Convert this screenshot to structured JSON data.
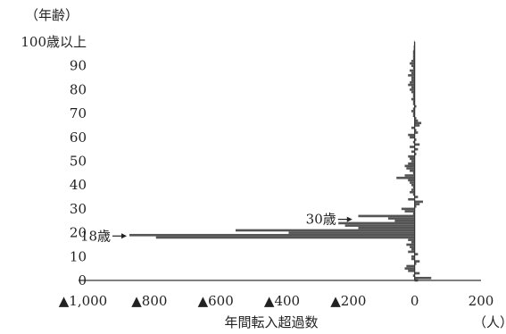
{
  "chart_data": {
    "type": "bar",
    "orientation": "horizontal",
    "title": "",
    "xlabel": "年間転入超過数",
    "xunit": "（人）",
    "ylabel": "（年齢）",
    "x_ticks": [
      "▲1,000",
      "▲800",
      "▲600",
      "▲400",
      "▲200",
      "0",
      "200"
    ],
    "x_tick_values": [
      -1000,
      -800,
      -600,
      -400,
      -200,
      0,
      200
    ],
    "xlim": [
      -1000,
      200
    ],
    "y_ticks": [
      "0",
      "10",
      "20",
      "30",
      "40",
      "50",
      "60",
      "70",
      "80",
      "90",
      "100歳以上"
    ],
    "y_tick_values": [
      0,
      10,
      20,
      30,
      40,
      50,
      60,
      70,
      80,
      90,
      100
    ],
    "ylim": [
      0,
      100
    ],
    "grid": false,
    "bar_color": "#555555",
    "ages": [
      0,
      1,
      2,
      3,
      4,
      5,
      6,
      7,
      8,
      9,
      10,
      11,
      12,
      13,
      14,
      15,
      16,
      17,
      18,
      19,
      20,
      21,
      22,
      23,
      24,
      25,
      26,
      27,
      28,
      29,
      30,
      31,
      32,
      33,
      34,
      35,
      36,
      37,
      38,
      39,
      40,
      41,
      42,
      43,
      44,
      45,
      46,
      47,
      48,
      49,
      50,
      51,
      52,
      53,
      54,
      55,
      56,
      57,
      58,
      59,
      60,
      61,
      62,
      63,
      64,
      65,
      66,
      67,
      68,
      69,
      70,
      71,
      72,
      73,
      74,
      75,
      76,
      77,
      78,
      79,
      80,
      81,
      82,
      83,
      84,
      85,
      86,
      87,
      88,
      89,
      90,
      91,
      92,
      93,
      94,
      95,
      96,
      97,
      98,
      99,
      100
    ],
    "values": [
      10,
      50,
      -5,
      15,
      -20,
      -30,
      -25,
      5,
      15,
      -10,
      -10,
      10,
      -20,
      -10,
      -15,
      -25,
      -10,
      -20,
      -780,
      -860,
      -380,
      -540,
      -170,
      -210,
      -230,
      -60,
      -80,
      -170,
      -5,
      -30,
      -40,
      5,
      15,
      25,
      -20,
      10,
      -5,
      -15,
      -10,
      -5,
      -10,
      -15,
      -20,
      -55,
      -30,
      -5,
      -15,
      -25,
      -30,
      -20,
      -10,
      -15,
      -20,
      5,
      -10,
      10,
      -15,
      15,
      -5,
      5,
      -15,
      -20,
      10,
      5,
      -10,
      15,
      20,
      10,
      5,
      -5,
      -5,
      -10,
      -5,
      5,
      -5,
      -5,
      -10,
      -5,
      -5,
      -10,
      -15,
      -10,
      -20,
      -15,
      -10,
      -10,
      -20,
      -10,
      -15,
      -5,
      -10,
      -15,
      -10,
      -5,
      -5,
      -5,
      -5,
      -3,
      -3,
      -2,
      -2
    ],
    "annotations": [
      {
        "text": "30歳",
        "age": 26,
        "value": -180
      },
      {
        "text": "18歳",
        "age": 19,
        "value": -860
      }
    ]
  }
}
